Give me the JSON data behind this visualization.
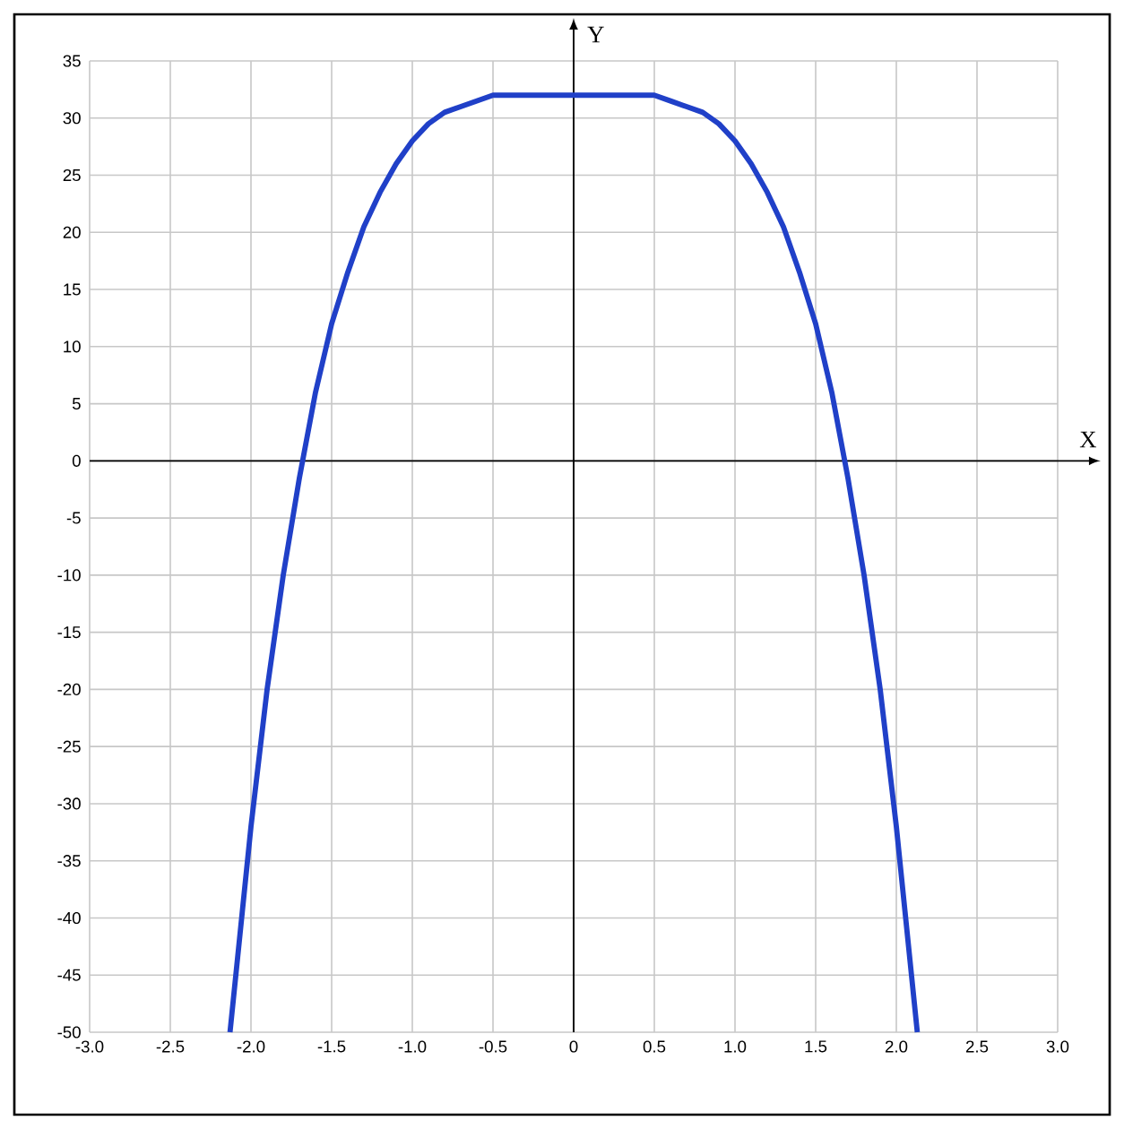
{
  "chart_data": {
    "type": "line",
    "xlabel": "X",
    "ylabel": "Y",
    "xlim": [
      -3,
      3
    ],
    "ylim": [
      -50,
      35
    ],
    "xticks": [
      {
        "value": -3,
        "label": "-3.0"
      },
      -2.5,
      {
        "value": -2,
        "label": "-2.0"
      },
      -1.5,
      {
        "value": -1,
        "label": "-1.0"
      },
      -0.5,
      0,
      0.5,
      {
        "value": 1,
        "label": "1.0"
      },
      1.5,
      {
        "value": 2,
        "label": "2.0"
      },
      2.5,
      {
        "value": 3,
        "label": "3.0"
      }
    ],
    "yticks": [
      -50,
      -45,
      -40,
      -35,
      -30,
      -25,
      -20,
      -15,
      -10,
      -5,
      0,
      5,
      10,
      15,
      20,
      25,
      30,
      35
    ],
    "grid": true,
    "series": [
      {
        "color": "#2040c8",
        "x": [
          -2.13,
          -2.0,
          -1.9,
          -1.8,
          -1.7,
          -1.6,
          -1.5,
          -1.4,
          -1.3,
          -1.2,
          -1.1,
          -1.0,
          -0.9,
          -0.8,
          -0.7,
          -0.6,
          -0.5,
          -0.4,
          -0.2,
          0,
          0.2,
          0.4,
          0.5,
          0.6,
          0.7,
          0.8,
          0.9,
          1.0,
          1.1,
          1.2,
          1.3,
          1.4,
          1.5,
          1.6,
          1.7,
          1.8,
          1.9,
          2.0,
          2.13
        ],
        "values": [
          -50,
          -32,
          -20,
          -10,
          -1.5,
          6,
          12,
          16.5,
          20.5,
          23.5,
          26,
          28,
          29.5,
          30.5,
          31,
          31.5,
          32,
          32,
          32,
          32,
          32,
          32,
          32,
          31.5,
          31,
          30.5,
          29.5,
          28,
          26,
          23.5,
          20.5,
          16.5,
          12,
          6,
          -1.5,
          -10,
          -20,
          -32,
          -50
        ]
      }
    ]
  }
}
